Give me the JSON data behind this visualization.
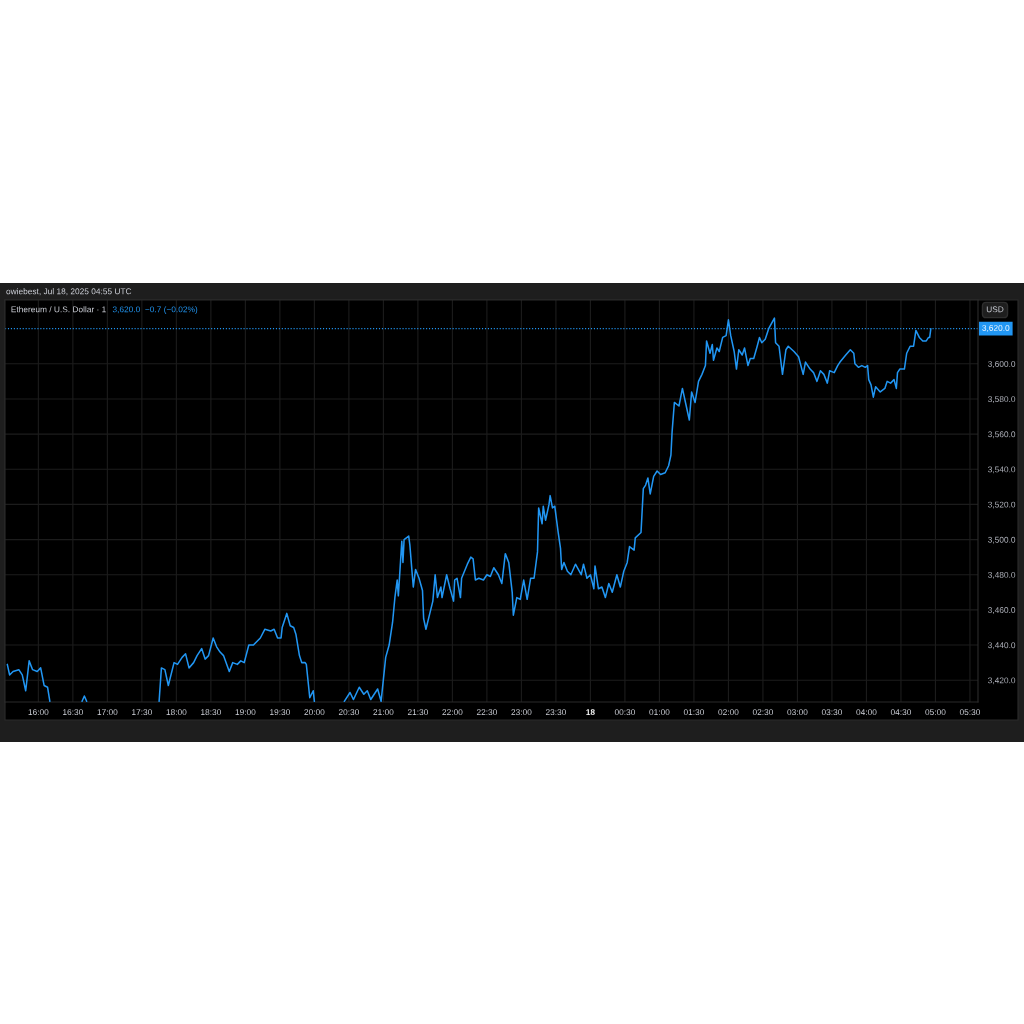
{
  "chart_data": {
    "type": "line",
    "title": "Ethereum / U.S. Dollar · 1",
    "subtitle": "3,620.0  −0.7 (−0.02%)",
    "ylabel": "USD",
    "annotations": [
      "owiebest, Jul 18, 2025 04:55 UTC"
    ],
    "x": [
      "2025-07-17T15:33",
      "2025-07-17T15:35",
      "2025-07-17T15:38",
      "2025-07-17T15:43",
      "2025-07-17T15:46",
      "2025-07-17T15:49",
      "2025-07-17T15:52",
      "2025-07-17T15:55",
      "2025-07-17T15:59",
      "2025-07-17T16:02",
      "2025-07-17T16:05",
      "2025-07-17T16:08",
      "2025-07-17T16:10",
      "2025-07-17T16:12",
      "2025-07-17T16:38",
      "2025-07-17T16:40",
      "2025-07-17T16:42",
      "2025-07-17T16:44",
      "2025-07-17T17:45",
      "2025-07-17T17:47",
      "2025-07-17T17:50",
      "2025-07-17T17:53",
      "2025-07-17T17:58",
      "2025-07-17T18:01",
      "2025-07-17T18:05",
      "2025-07-17T18:08",
      "2025-07-17T18:11",
      "2025-07-17T18:15",
      "2025-07-17T18:18",
      "2025-07-17T18:22",
      "2025-07-17T18:25",
      "2025-07-17T18:28",
      "2025-07-17T18:32",
      "2025-07-17T18:35",
      "2025-07-17T18:38",
      "2025-07-17T18:41",
      "2025-07-17T18:46",
      "2025-07-17T18:49",
      "2025-07-17T18:53",
      "2025-07-17T18:56",
      "2025-07-17T18:59",
      "2025-07-17T19:03",
      "2025-07-17T19:07",
      "2025-07-17T19:10",
      "2025-07-17T19:13",
      "2025-07-17T19:17",
      "2025-07-17T19:22",
      "2025-07-17T19:25",
      "2025-07-17T19:28",
      "2025-07-17T19:31",
      "2025-07-17T19:32",
      "2025-07-17T19:36",
      "2025-07-17T19:39",
      "2025-07-17T19:42",
      "2025-07-17T19:44",
      "2025-07-17T19:47",
      "2025-07-17T19:49",
      "2025-07-17T19:52",
      "2025-07-17T19:53",
      "2025-07-17T19:56",
      "2025-07-17T19:59",
      "2025-07-17T20:00",
      "2025-07-17T20:12",
      "2025-07-17T20:26",
      "2025-07-17T20:31",
      "2025-07-17T20:34",
      "2025-07-17T20:39",
      "2025-07-17T20:43",
      "2025-07-17T20:46",
      "2025-07-17T20:49",
      "2025-07-17T20:52",
      "2025-07-17T20:55",
      "2025-07-17T20:58",
      "2025-07-17T21:02",
      "2025-07-17T21:05",
      "2025-07-17T21:08",
      "2025-07-17T21:10",
      "2025-07-17T21:12",
      "2025-07-17T21:13",
      "2025-07-17T21:16",
      "2025-07-17T21:17",
      "2025-07-17T21:18",
      "2025-07-17T21:22",
      "2025-07-17T21:23",
      "2025-07-17T21:26",
      "2025-07-17T21:28",
      "2025-07-17T21:31",
      "2025-07-17T21:34",
      "2025-07-17T21:35",
      "2025-07-17T21:37",
      "2025-07-17T21:40",
      "2025-07-17T21:43",
      "2025-07-17T21:45",
      "2025-07-17T21:47",
      "2025-07-17T21:50",
      "2025-07-17T21:51",
      "2025-07-17T21:55",
      "2025-07-17T21:58",
      "2025-07-17T22:01",
      "2025-07-17T22:02",
      "2025-07-17T22:04",
      "2025-07-17T22:07",
      "2025-07-17T22:08",
      "2025-07-17T22:13",
      "2025-07-17T22:16",
      "2025-07-17T22:18",
      "2025-07-17T22:20",
      "2025-07-17T22:23",
      "2025-07-17T22:27",
      "2025-07-17T22:30",
      "2025-07-17T22:33",
      "2025-07-17T22:36",
      "2025-07-17T22:38",
      "2025-07-17T22:40",
      "2025-07-17T22:43",
      "2025-07-17T22:46",
      "2025-07-17T22:49",
      "2025-07-17T22:52",
      "2025-07-17T22:53",
      "2025-07-17T22:56",
      "2025-07-17T22:59",
      "2025-07-17T23:02",
      "2025-07-17T23:05",
      "2025-07-17T23:08",
      "2025-07-17T23:11",
      "2025-07-17T23:14",
      "2025-07-17T23:15",
      "2025-07-17T23:18",
      "2025-07-17T23:19",
      "2025-07-17T23:21",
      "2025-07-17T23:24",
      "2025-07-17T23:25",
      "2025-07-17T23:27",
      "2025-07-17T23:29",
      "2025-07-17T23:32",
      "2025-07-17T23:34",
      "2025-07-17T23:35",
      "2025-07-17T23:37",
      "2025-07-17T23:40",
      "2025-07-17T23:43",
      "2025-07-17T23:47",
      "2025-07-17T23:52",
      "2025-07-17T23:54",
      "2025-07-17T23:57",
      "2025-07-18T00:00",
      "2025-07-18T00:03",
      "2025-07-18T00:04",
      "2025-07-18T00:07",
      "2025-07-18T00:10",
      "2025-07-18T00:13",
      "2025-07-18T00:16",
      "2025-07-18T00:19",
      "2025-07-18T00:23",
      "2025-07-18T00:26",
      "2025-07-18T00:29",
      "2025-07-18T00:32",
      "2025-07-18T00:34",
      "2025-07-18T00:38",
      "2025-07-18T00:39",
      "2025-07-18T00:44",
      "2025-07-18T00:46",
      "2025-07-18T00:48",
      "2025-07-18T00:50",
      "2025-07-18T00:52",
      "2025-07-18T00:55",
      "2025-07-18T00:58",
      "2025-07-18T01:01",
      "2025-07-18T01:05",
      "2025-07-18T01:08",
      "2025-07-18T01:10",
      "2025-07-18T01:11",
      "2025-07-18T01:13",
      "2025-07-18T01:17",
      "2025-07-18T01:20",
      "2025-07-18T01:23",
      "2025-07-18T01:26",
      "2025-07-18T01:28",
      "2025-07-18T01:31",
      "2025-07-18T01:34",
      "2025-07-18T01:37",
      "2025-07-18T01:40",
      "2025-07-18T01:41",
      "2025-07-18T01:44",
      "2025-07-18T01:46",
      "2025-07-18T01:47",
      "2025-07-18T01:50",
      "2025-07-18T01:52",
      "2025-07-18T01:55",
      "2025-07-18T01:58",
      "2025-07-18T02:00",
      "2025-07-18T02:02",
      "2025-07-18T02:05",
      "2025-07-18T02:07",
      "2025-07-18T02:09",
      "2025-07-18T02:12",
      "2025-07-18T02:14",
      "2025-07-18T02:17",
      "2025-07-18T02:19",
      "2025-07-18T02:22",
      "2025-07-18T02:25",
      "2025-07-18T02:27",
      "2025-07-18T02:29",
      "2025-07-18T02:32",
      "2025-07-18T02:35",
      "2025-07-18T02:40",
      "2025-07-18T02:41",
      "2025-07-18T02:44",
      "2025-07-18T02:47",
      "2025-07-18T02:50",
      "2025-07-18T02:52",
      "2025-07-18T02:57",
      "2025-07-18T03:01",
      "2025-07-18T03:05",
      "2025-07-18T03:07",
      "2025-07-18T03:11",
      "2025-07-18T03:14",
      "2025-07-18T03:17",
      "2025-07-18T03:20",
      "2025-07-18T03:23",
      "2025-07-18T03:26",
      "2025-07-18T03:28",
      "2025-07-18T03:32",
      "2025-07-18T03:35",
      "2025-07-18T03:37",
      "2025-07-18T03:42",
      "2025-07-18T03:46",
      "2025-07-18T03:49",
      "2025-07-18T03:50",
      "2025-07-18T03:53",
      "2025-07-18T03:56",
      "2025-07-18T03:59",
      "2025-07-18T04:01",
      "2025-07-18T04:02",
      "2025-07-18T04:04",
      "2025-07-18T04:06",
      "2025-07-18T04:08",
      "2025-07-18T04:12",
      "2025-07-18T04:16",
      "2025-07-18T04:18",
      "2025-07-18T04:21",
      "2025-07-18T04:24",
      "2025-07-18T04:26",
      "2025-07-18T04:27",
      "2025-07-18T04:29",
      "2025-07-18T04:33",
      "2025-07-18T04:35",
      "2025-07-18T04:38",
      "2025-07-18T04:41",
      "2025-07-18T04:43",
      "2025-07-18T04:46",
      "2025-07-18T04:49",
      "2025-07-18T04:52",
      "2025-07-18T04:54",
      "2025-07-18T04:55",
      "2025-07-18T04:56"
    ],
    "series": [
      {
        "color": "#2196f3",
        "values": [
          3429,
          3423,
          3425,
          3426,
          3423,
          3414,
          3431,
          3426,
          3425,
          3427,
          3417,
          3416,
          3408,
          null,
          3408,
          3411,
          3408,
          null,
          3408,
          3427,
          3426,
          3417,
          3430,
          3429,
          3433,
          3435,
          3427,
          3430,
          3434,
          3438,
          3432,
          3434,
          3444,
          3439,
          3436,
          3434,
          3425,
          3430,
          3429,
          3431,
          3430,
          3440,
          3440,
          3442,
          3444,
          3449,
          3448,
          3449,
          3444,
          3444,
          3450,
          3458,
          3451,
          3450,
          3446,
          3434,
          3430,
          3430,
          3429,
          3410,
          3414,
          3408,
          null,
          3408,
          3413,
          3409,
          3416,
          3412,
          3414,
          3409,
          3412,
          3415,
          3408,
          3433,
          3440,
          3453,
          3467,
          3477,
          3468,
          3499,
          3487,
          3500,
          3502,
          3497,
          3473,
          3483,
          3478,
          3471,
          3455,
          3449,
          3457,
          3465,
          3480,
          3467,
          3473,
          3467,
          3480,
          3472,
          3465,
          3477,
          3478,
          3467,
          3478,
          3486,
          3490,
          3489,
          3477,
          3478,
          3477,
          3480,
          3479,
          3484,
          3482,
          3480,
          3475,
          3492,
          3487,
          3470,
          3457,
          3467,
          3466,
          3477,
          3466,
          3478,
          3478,
          3493,
          3518,
          3509,
          3519,
          3511,
          3520,
          3525,
          3518,
          3519,
          3504,
          3495,
          3483,
          3487,
          3482,
          3480,
          3486,
          3480,
          3486,
          3478,
          3480,
          3472,
          3485,
          3472,
          3473,
          3467,
          3475,
          3470,
          3480,
          3473,
          3482,
          3487,
          3496,
          3494,
          3501,
          3504,
          3529,
          3531,
          3535,
          3526,
          3536,
          3539,
          3537,
          3538,
          3542,
          3548,
          3561,
          3578,
          3576,
          3586,
          3577,
          3568,
          3584,
          3578,
          3590,
          3594,
          3599,
          3613,
          3606,
          3611,
          3602,
          3609,
          3607,
          3615,
          3616,
          3625,
          3616,
          3607,
          3597,
          3608,
          3605,
          3609,
          3599,
          3603,
          3603,
          3610,
          3615,
          3612,
          3614,
          3620,
          3626,
          3612,
          3610,
          3594,
          3608,
          3610,
          3607,
          3604,
          3594,
          3601,
          3597,
          3595,
          3590,
          3596,
          3594,
          3589,
          3596,
          3595,
          3599,
          3601,
          3605,
          3608,
          3606,
          3600,
          3598,
          3599,
          3598,
          3599,
          3591,
          3588,
          3581,
          3587,
          3584,
          3586,
          3590,
          3589,
          3591,
          3586,
          3595,
          3597,
          3597,
          3606,
          3610,
          3610,
          3619,
          3615,
          3613,
          3613,
          3615,
          3615,
          3620
        ]
      }
    ],
    "xlim": [
      "2025-07-17T15:31",
      "2025-07-18T05:37"
    ],
    "xticks": [
      {
        "value": "2025-07-17T16:00",
        "label": "16:00"
      },
      {
        "value": "2025-07-17T16:30",
        "label": "16:30"
      },
      {
        "value": "2025-07-17T17:00",
        "label": "17:00"
      },
      {
        "value": "2025-07-17T17:30",
        "label": "17:30"
      },
      {
        "value": "2025-07-17T18:00",
        "label": "18:00"
      },
      {
        "value": "2025-07-17T18:30",
        "label": "18:30"
      },
      {
        "value": "2025-07-17T19:00",
        "label": "19:00"
      },
      {
        "value": "2025-07-17T19:30",
        "label": "19:30"
      },
      {
        "value": "2025-07-17T20:00",
        "label": "20:00"
      },
      {
        "value": "2025-07-17T20:30",
        "label": "20:30"
      },
      {
        "value": "2025-07-17T21:00",
        "label": "21:00"
      },
      {
        "value": "2025-07-17T21:30",
        "label": "21:30"
      },
      {
        "value": "2025-07-17T22:00",
        "label": "22:00"
      },
      {
        "value": "2025-07-17T22:30",
        "label": "22:30"
      },
      {
        "value": "2025-07-17T23:00",
        "label": "23:00"
      },
      {
        "value": "2025-07-17T23:30",
        "label": "23:30"
      },
      {
        "value": "2025-07-18T00:00",
        "label": "18"
      },
      {
        "value": "2025-07-18T00:30",
        "label": "00:30"
      },
      {
        "value": "2025-07-18T01:00",
        "label": "01:00"
      },
      {
        "value": "2025-07-18T01:30",
        "label": "01:30"
      },
      {
        "value": "2025-07-18T02:00",
        "label": "02:00"
      },
      {
        "value": "2025-07-18T02:30",
        "label": "02:30"
      },
      {
        "value": "2025-07-18T03:00",
        "label": "03:00"
      },
      {
        "value": "2025-07-18T03:30",
        "label": "03:30"
      },
      {
        "value": "2025-07-18T04:00",
        "label": "04:00"
      },
      {
        "value": "2025-07-18T04:30",
        "label": "04:30"
      },
      {
        "value": "2025-07-18T05:00",
        "label": "05:00"
      },
      {
        "value": "2025-07-18T05:30",
        "label": "05:30"
      }
    ],
    "ylim": [
      3407.6,
      3636.3
    ],
    "yticks": [
      {
        "value": 3420,
        "label": "3,420.0"
      },
      {
        "value": 3440,
        "label": "3,440.0"
      },
      {
        "value": 3460,
        "label": "3,460.0"
      },
      {
        "value": 3480,
        "label": "3,480.0"
      },
      {
        "value": 3500,
        "label": "3,500.0"
      },
      {
        "value": 3520,
        "label": "3,520.0"
      },
      {
        "value": 3540,
        "label": "3,540.0"
      },
      {
        "value": 3560,
        "label": "3,560.0"
      },
      {
        "value": 3580,
        "label": "3,580.0"
      },
      {
        "value": 3600,
        "label": "3,600.0"
      }
    ],
    "grid": true,
    "ref_lines": [
      {
        "axis": "y",
        "value": 3620,
        "label": "3,620.0",
        "color": "#2196f3",
        "line_style": "dotted"
      }
    ]
  }
}
